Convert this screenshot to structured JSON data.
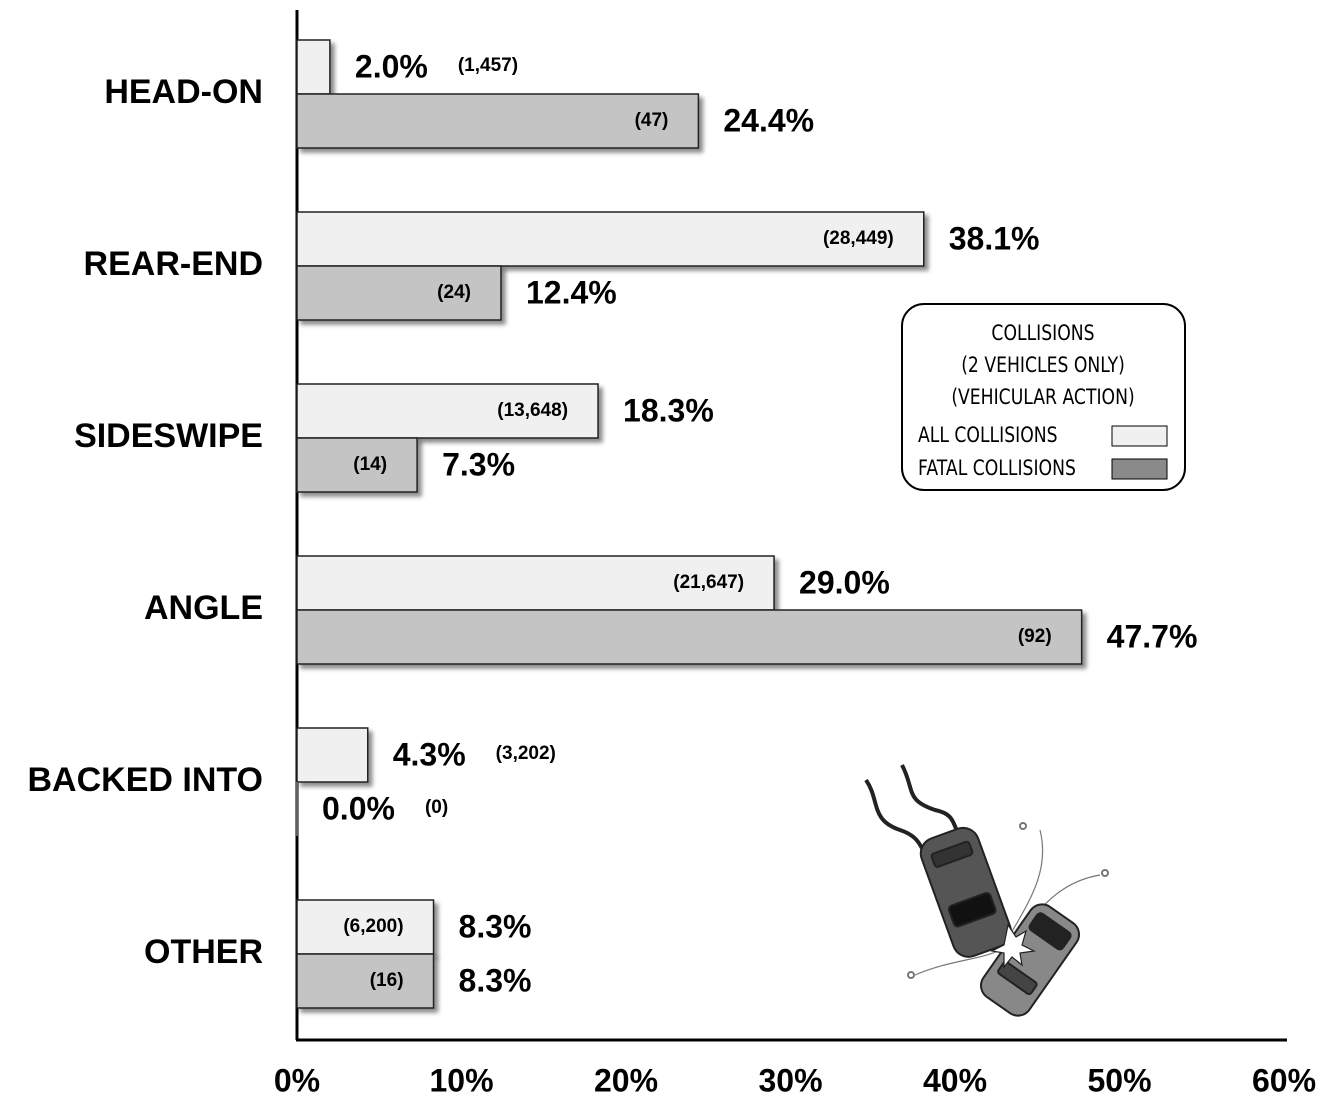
{
  "chart_data": {
    "type": "barh",
    "categories": [
      "HEAD-ON",
      "REAR-END",
      "SIDESWIPE",
      "ANGLE",
      "BACKED INTO",
      "OTHER"
    ],
    "series": [
      {
        "name": "ALL COLLISIONS",
        "color": "#f0f0f0",
        "values": [
          2.0,
          38.1,
          18.3,
          29.0,
          4.3,
          8.3
        ],
        "value_labels": [
          "2.0%",
          "38.1%",
          "18.3%",
          "29.0%",
          "4.3%",
          "8.3%"
        ],
        "count_labels": [
          "(1,457)",
          "(28,449)",
          "(13,648)",
          "(21,647)",
          "(3,202)",
          "(6,200)"
        ]
      },
      {
        "name": "FATAL COLLISIONS",
        "color": "#c4c4c4",
        "values": [
          24.4,
          12.4,
          7.3,
          47.7,
          0.0,
          8.3
        ],
        "value_labels": [
          "24.4%",
          "12.4%",
          "7.3%",
          "47.7%",
          "0.0%",
          "8.3%"
        ],
        "count_labels": [
          "(47)",
          "(24)",
          "(14)",
          "(92)",
          "(0)",
          "(16)"
        ]
      }
    ],
    "legend_title": [
      "COLLISIONS",
      "(2 VEHICLES ONLY)",
      "(VEHICULAR ACTION)"
    ],
    "legend": "right",
    "xlim": [
      0,
      60
    ],
    "xticks": [
      {
        "value": 0,
        "label": "0%"
      },
      {
        "value": 10,
        "label": "10%"
      },
      {
        "value": 20,
        "label": "20%"
      },
      {
        "value": 30,
        "label": "30%"
      },
      {
        "value": 40,
        "label": "40%"
      },
      {
        "value": 50,
        "label": "50%"
      },
      {
        "value": 60,
        "label": "60%"
      }
    ],
    "grid": false
  }
}
